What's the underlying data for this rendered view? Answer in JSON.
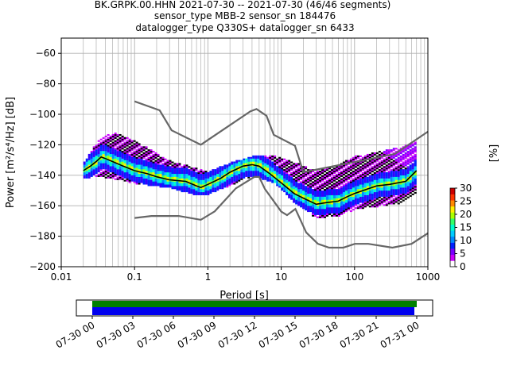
{
  "title_lines": [
    "BK.GRPK.00.HHN   2021-07-30 -- 2021-07-30  (46/46 segments)",
    "sensor_type MBB-2 sensor_sn 184476",
    "datalogger_type Q330S+ datalogger_sn 6433"
  ],
  "colorbar": {
    "label": "[%]",
    "ticks": [
      "0",
      "5",
      "10",
      "15",
      "20",
      "25",
      "30"
    ],
    "range": [
      0,
      30
    ]
  },
  "colors": {
    "mean_line": "#000000",
    "noise_model": "#666666",
    "coverage_top": "#008000",
    "coverage_bottom": "#0000ee"
  },
  "chart_data": {
    "type": "heatmap",
    "xlabel": "Period [s]",
    "ylabel": "Power [m²/s⁴/Hz] [dB]",
    "xscale": "log",
    "xlim": [
      0.01,
      1000
    ],
    "ylim": [
      -200,
      -50
    ],
    "grid": true,
    "x_ticks": [
      "0.01",
      "0.1",
      "1",
      "10",
      "100",
      "1000"
    ],
    "y_ticks": [
      "−200",
      "−180",
      "−160",
      "−140",
      "−120",
      "−100",
      "−80",
      "−60"
    ],
    "series": [
      {
        "name": "",
        "kind": "mean",
        "x": [
          0.02,
          0.025,
          0.03,
          0.035,
          0.04,
          0.05,
          0.07,
          0.1,
          0.15,
          0.2,
          0.3,
          0.5,
          0.7,
          0.8,
          1,
          1.5,
          2,
          3,
          4,
          5,
          7,
          10,
          15,
          20,
          30,
          40,
          60,
          80,
          100,
          150,
          200,
          300,
          500,
          700
        ],
        "y": [
          -137,
          -134,
          -131,
          -128,
          -129,
          -131,
          -134,
          -137,
          -139,
          -141,
          -143,
          -144,
          -147,
          -148,
          -146,
          -142,
          -138,
          -134,
          -133,
          -134,
          -139,
          -145,
          -152,
          -155,
          -159,
          -158,
          -157,
          -154,
          -152,
          -149,
          -147,
          -146,
          -144,
          -137
        ]
      },
      {
        "name": "",
        "kind": "noise-model-high",
        "x": [
          0.1,
          0.22,
          0.32,
          0.8,
          3.8,
          4.6,
          6.3,
          7.9,
          15.4,
          20,
          354.8,
          1000
        ],
        "y": [
          -91.5,
          -97.4,
          -110.5,
          -120,
          -98,
          -96.5,
          -101,
          -113.5,
          -120.7,
          -138,
          -126,
          -111.4
        ]
      },
      {
        "name": "",
        "kind": "noise-model-low",
        "x": [
          0.1,
          0.17,
          0.4,
          0.8,
          1.24,
          2.4,
          4.3,
          5,
          6,
          10,
          12,
          15.6,
          21.9,
          31.6,
          45,
          70,
          101,
          154,
          328,
          600,
          1000
        ],
        "y": [
          -168,
          -166.7,
          -166.7,
          -169.2,
          -163.7,
          -148.6,
          -141.1,
          -141.1,
          -149,
          -163.8,
          -166.2,
          -162.1,
          -177.5,
          -185,
          -187.5,
          -187.5,
          -185,
          -185,
          -187.5,
          -185,
          -178
        ]
      }
    ],
    "density_bands": [
      {
        "x": [
          0.02,
          0.03,
          0.05,
          0.1,
          0.3,
          0.7,
          1,
          2,
          4,
          8,
          15,
          30,
          60,
          100,
          200,
          400,
          700
        ],
        "y_low": [
          -142,
          -140,
          -142,
          -145,
          -148,
          -153,
          -152,
          -146,
          -140,
          -145,
          -158,
          -168,
          -166,
          -162,
          -160,
          -158,
          -150
        ],
        "y_high": [
          -132,
          -118,
          -112,
          -118,
          -131,
          -136,
          -138,
          -132,
          -128,
          -128,
          -132,
          -138,
          -133,
          -128,
          -125,
          -122,
          -118
        ]
      }
    ]
  },
  "coverage": {
    "tick_labels": [
      "07-30 00",
      "07-30 03",
      "07-30 06",
      "07-30 09",
      "07-30 12",
      "07-30 15",
      "07-30 18",
      "07-30 21",
      "07-31 00"
    ]
  }
}
